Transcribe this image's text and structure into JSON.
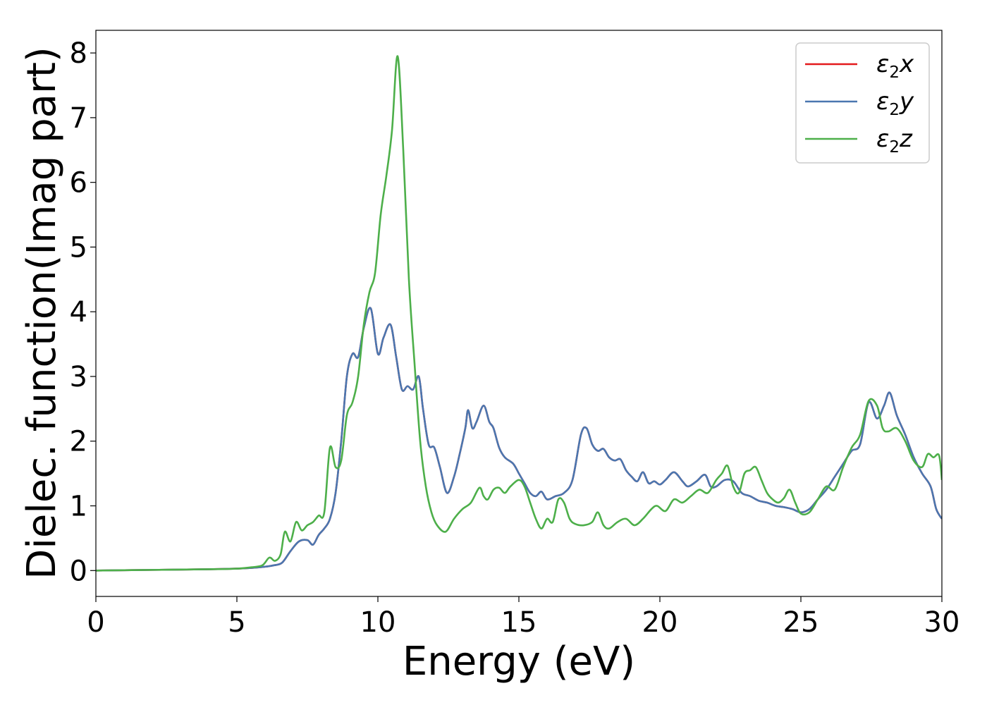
{
  "chart_data": {
    "type": "line",
    "xlabel": "Energy (eV)",
    "ylabel": "Dielec. function(Imag part)",
    "xlim": [
      0,
      30
    ],
    "ylim": [
      -0.4,
      8.35
    ],
    "xticks": [
      0,
      5,
      10,
      15,
      20,
      25,
      30
    ],
    "yticks": [
      0,
      1,
      2,
      3,
      4,
      5,
      6,
      7,
      8
    ],
    "grid": false,
    "legend_position": "top-right",
    "series": [
      {
        "name": "ε2x",
        "legend": {
          "base": "ε",
          "sub": "2",
          "var": "x"
        },
        "color": "#e41a1c",
        "x": [
          0,
          2,
          4,
          5,
          5.5,
          6,
          6.3,
          6.6,
          6.9,
          7.2,
          7.5,
          7.7,
          7.9,
          8.1,
          8.3,
          8.5,
          8.7,
          8.9,
          9.1,
          9.3,
          9.5,
          9.75,
          10.0,
          10.2,
          10.45,
          10.65,
          10.85,
          11.05,
          11.25,
          11.45,
          11.6,
          11.8,
          12.0,
          12.2,
          12.45,
          12.7,
          12.9,
          13.1,
          13.2,
          13.35,
          13.5,
          13.75,
          13.95,
          14.1,
          14.3,
          14.5,
          14.8,
          15.0,
          15.2,
          15.4,
          15.6,
          15.8,
          16.0,
          16.3,
          16.6,
          16.9,
          17.2,
          17.4,
          17.6,
          17.8,
          18.0,
          18.2,
          18.4,
          18.6,
          18.8,
          19.0,
          19.2,
          19.4,
          19.6,
          19.8,
          20.0,
          20.2,
          20.5,
          20.8,
          21.0,
          21.3,
          21.6,
          21.8,
          22.0,
          22.3,
          22.6,
          22.9,
          23.2,
          23.5,
          23.8,
          24.1,
          24.4,
          24.7,
          25.0,
          25.3,
          25.6,
          25.9,
          26.2,
          26.5,
          26.8,
          27.1,
          27.4,
          27.7,
          27.95,
          28.15,
          28.4,
          28.7,
          29.0,
          29.3,
          29.6,
          29.8,
          30.0
        ],
        "y": [
          0.0,
          0.01,
          0.02,
          0.03,
          0.04,
          0.06,
          0.08,
          0.12,
          0.3,
          0.45,
          0.47,
          0.4,
          0.55,
          0.65,
          0.8,
          1.2,
          2.0,
          3.0,
          3.35,
          3.3,
          3.75,
          4.05,
          3.35,
          3.6,
          3.8,
          3.3,
          2.8,
          2.85,
          2.8,
          3.0,
          2.5,
          1.95,
          1.9,
          1.6,
          1.2,
          1.45,
          1.8,
          2.2,
          2.48,
          2.2,
          2.3,
          2.55,
          2.3,
          2.2,
          1.9,
          1.75,
          1.65,
          1.5,
          1.35,
          1.2,
          1.15,
          1.22,
          1.1,
          1.15,
          1.2,
          1.4,
          2.1,
          2.2,
          1.95,
          1.85,
          1.88,
          1.75,
          1.7,
          1.72,
          1.55,
          1.45,
          1.38,
          1.52,
          1.35,
          1.38,
          1.33,
          1.4,
          1.52,
          1.38,
          1.3,
          1.38,
          1.48,
          1.3,
          1.3,
          1.4,
          1.38,
          1.2,
          1.15,
          1.08,
          1.05,
          1.0,
          0.98,
          0.95,
          0.9,
          0.95,
          1.1,
          1.25,
          1.45,
          1.65,
          1.85,
          1.95,
          2.6,
          2.35,
          2.55,
          2.75,
          2.4,
          2.1,
          1.75,
          1.5,
          1.3,
          0.95,
          0.8
        ]
      },
      {
        "name": "ε2y",
        "legend": {
          "base": "ε",
          "sub": "2",
          "var": "y"
        },
        "color": "#4a77b0",
        "x": [
          0,
          2,
          4,
          5,
          5.5,
          6,
          6.3,
          6.6,
          6.9,
          7.2,
          7.5,
          7.7,
          7.9,
          8.1,
          8.3,
          8.5,
          8.7,
          8.9,
          9.1,
          9.3,
          9.5,
          9.75,
          10.0,
          10.2,
          10.45,
          10.65,
          10.85,
          11.05,
          11.25,
          11.45,
          11.6,
          11.8,
          12.0,
          12.2,
          12.45,
          12.7,
          12.9,
          13.1,
          13.2,
          13.35,
          13.5,
          13.75,
          13.95,
          14.1,
          14.3,
          14.5,
          14.8,
          15.0,
          15.2,
          15.4,
          15.6,
          15.8,
          16.0,
          16.3,
          16.6,
          16.9,
          17.2,
          17.4,
          17.6,
          17.8,
          18.0,
          18.2,
          18.4,
          18.6,
          18.8,
          19.0,
          19.2,
          19.4,
          19.6,
          19.8,
          20.0,
          20.2,
          20.5,
          20.8,
          21.0,
          21.3,
          21.6,
          21.8,
          22.0,
          22.3,
          22.6,
          22.9,
          23.2,
          23.5,
          23.8,
          24.1,
          24.4,
          24.7,
          25.0,
          25.3,
          25.6,
          25.9,
          26.2,
          26.5,
          26.8,
          27.1,
          27.4,
          27.7,
          27.95,
          28.15,
          28.4,
          28.7,
          29.0,
          29.3,
          29.6,
          29.8,
          30.0
        ],
        "y": [
          0.0,
          0.01,
          0.02,
          0.03,
          0.04,
          0.06,
          0.08,
          0.12,
          0.3,
          0.45,
          0.47,
          0.4,
          0.55,
          0.65,
          0.8,
          1.2,
          2.0,
          3.0,
          3.35,
          3.3,
          3.75,
          4.05,
          3.35,
          3.6,
          3.8,
          3.3,
          2.8,
          2.85,
          2.8,
          3.0,
          2.5,
          1.95,
          1.9,
          1.6,
          1.2,
          1.45,
          1.8,
          2.2,
          2.48,
          2.2,
          2.3,
          2.55,
          2.3,
          2.2,
          1.9,
          1.75,
          1.65,
          1.5,
          1.35,
          1.2,
          1.15,
          1.22,
          1.1,
          1.15,
          1.2,
          1.4,
          2.1,
          2.2,
          1.95,
          1.85,
          1.88,
          1.75,
          1.7,
          1.72,
          1.55,
          1.45,
          1.38,
          1.52,
          1.35,
          1.38,
          1.33,
          1.4,
          1.52,
          1.38,
          1.3,
          1.38,
          1.48,
          1.3,
          1.3,
          1.4,
          1.38,
          1.2,
          1.15,
          1.08,
          1.05,
          1.0,
          0.98,
          0.95,
          0.9,
          0.95,
          1.1,
          1.25,
          1.45,
          1.65,
          1.85,
          1.95,
          2.6,
          2.35,
          2.55,
          2.75,
          2.4,
          2.1,
          1.75,
          1.5,
          1.3,
          0.95,
          0.8
        ]
      },
      {
        "name": "ε2z",
        "legend": {
          "base": "ε",
          "sub": "2",
          "var": "z"
        },
        "color": "#4daf4a",
        "x": [
          0,
          2,
          4,
          5,
          5.5,
          5.9,
          6.15,
          6.35,
          6.55,
          6.7,
          6.9,
          7.1,
          7.3,
          7.5,
          7.7,
          7.9,
          8.1,
          8.3,
          8.5,
          8.7,
          8.9,
          9.1,
          9.3,
          9.5,
          9.7,
          9.9,
          10.1,
          10.3,
          10.5,
          10.7,
          10.9,
          11.1,
          11.3,
          11.5,
          11.7,
          11.9,
          12.1,
          12.4,
          12.7,
          13.0,
          13.3,
          13.6,
          13.75,
          13.9,
          14.1,
          14.3,
          14.5,
          14.7,
          15.0,
          15.2,
          15.4,
          15.6,
          15.8,
          16.0,
          16.2,
          16.4,
          16.6,
          16.8,
          17.0,
          17.3,
          17.6,
          17.8,
          18.0,
          18.2,
          18.5,
          18.8,
          19.1,
          19.4,
          19.7,
          19.9,
          20.2,
          20.5,
          20.8,
          21.1,
          21.4,
          21.7,
          22.0,
          22.2,
          22.4,
          22.6,
          22.8,
          23.0,
          23.2,
          23.4,
          23.6,
          23.8,
          24.0,
          24.2,
          24.4,
          24.6,
          24.8,
          25.0,
          25.3,
          25.6,
          25.9,
          26.2,
          26.5,
          26.8,
          27.1,
          27.4,
          27.7,
          27.9,
          28.1,
          28.4,
          28.7,
          29.0,
          29.3,
          29.5,
          29.7,
          29.9,
          30.0
        ],
        "y": [
          0.0,
          0.01,
          0.02,
          0.03,
          0.05,
          0.08,
          0.2,
          0.15,
          0.25,
          0.6,
          0.45,
          0.75,
          0.62,
          0.7,
          0.75,
          0.85,
          0.9,
          1.9,
          1.6,
          1.7,
          2.4,
          2.6,
          3.0,
          3.8,
          4.3,
          4.6,
          5.5,
          6.1,
          6.8,
          7.95,
          6.5,
          4.5,
          3.2,
          2.0,
          1.3,
          0.9,
          0.7,
          0.6,
          0.8,
          0.95,
          1.05,
          1.28,
          1.15,
          1.1,
          1.25,
          1.28,
          1.2,
          1.3,
          1.4,
          1.3,
          1.05,
          0.8,
          0.65,
          0.8,
          0.75,
          1.1,
          1.05,
          0.8,
          0.72,
          0.7,
          0.75,
          0.9,
          0.7,
          0.65,
          0.75,
          0.8,
          0.7,
          0.8,
          0.95,
          1.0,
          0.92,
          1.1,
          1.05,
          1.15,
          1.25,
          1.2,
          1.4,
          1.5,
          1.62,
          1.3,
          1.2,
          1.5,
          1.55,
          1.6,
          1.4,
          1.2,
          1.1,
          1.05,
          1.12,
          1.25,
          1.05,
          0.88,
          0.9,
          1.1,
          1.3,
          1.25,
          1.6,
          1.9,
          2.1,
          2.62,
          2.55,
          2.2,
          2.15,
          2.2,
          2.0,
          1.7,
          1.6,
          1.8,
          1.75,
          1.78,
          1.4
        ]
      }
    ]
  }
}
